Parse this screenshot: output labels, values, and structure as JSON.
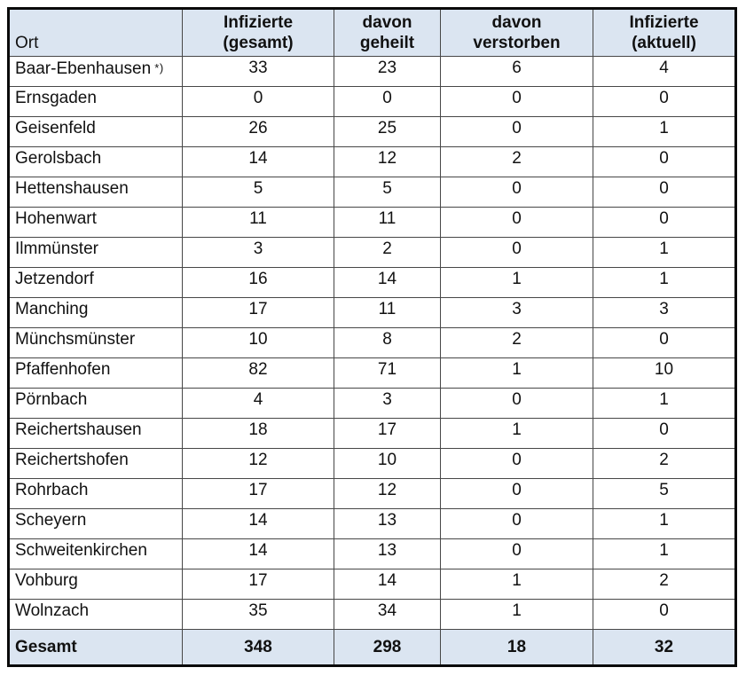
{
  "table": {
    "columns": [
      {
        "label": "Ort"
      },
      {
        "label": "Infizierte\n(gesamt)"
      },
      {
        "label": "davon\ngeheilt"
      },
      {
        "label": "davon\nverstorben"
      },
      {
        "label": "Infizierte\n(aktuell)"
      }
    ],
    "rows": [
      {
        "ort": "Baar-Ebenhausen",
        "note": "*)",
        "gesamt": "33",
        "geheilt": "23",
        "verstorben": "6",
        "aktuell": "4"
      },
      {
        "ort": "Ernsgaden",
        "note": "",
        "gesamt": "0",
        "geheilt": "0",
        "verstorben": "0",
        "aktuell": "0"
      },
      {
        "ort": "Geisenfeld",
        "note": "",
        "gesamt": "26",
        "geheilt": "25",
        "verstorben": "0",
        "aktuell": "1"
      },
      {
        "ort": "Gerolsbach",
        "note": "",
        "gesamt": "14",
        "geheilt": "12",
        "verstorben": "2",
        "aktuell": "0"
      },
      {
        "ort": "Hettenshausen",
        "note": "",
        "gesamt": "5",
        "geheilt": "5",
        "verstorben": "0",
        "aktuell": "0"
      },
      {
        "ort": "Hohenwart",
        "note": "",
        "gesamt": "11",
        "geheilt": "11",
        "verstorben": "0",
        "aktuell": "0"
      },
      {
        "ort": "Ilmmünster",
        "note": "",
        "gesamt": "3",
        "geheilt": "2",
        "verstorben": "0",
        "aktuell": "1"
      },
      {
        "ort": "Jetzendorf",
        "note": "",
        "gesamt": "16",
        "geheilt": "14",
        "verstorben": "1",
        "aktuell": "1"
      },
      {
        "ort": "Manching",
        "note": "",
        "gesamt": "17",
        "geheilt": "11",
        "verstorben": "3",
        "aktuell": "3"
      },
      {
        "ort": "Münchsmünster",
        "note": "",
        "gesamt": "10",
        "geheilt": "8",
        "verstorben": "2",
        "aktuell": "0"
      },
      {
        "ort": "Pfaffenhofen",
        "note": "",
        "gesamt": "82",
        "geheilt": "71",
        "verstorben": "1",
        "aktuell": "10"
      },
      {
        "ort": "Pörnbach",
        "note": "",
        "gesamt": "4",
        "geheilt": "3",
        "verstorben": "0",
        "aktuell": "1"
      },
      {
        "ort": "Reichertshausen",
        "note": "",
        "gesamt": "18",
        "geheilt": "17",
        "verstorben": "1",
        "aktuell": "0"
      },
      {
        "ort": "Reichertshofen",
        "note": "",
        "gesamt": "12",
        "geheilt": "10",
        "verstorben": "0",
        "aktuell": "2"
      },
      {
        "ort": "Rohrbach",
        "note": "",
        "gesamt": "17",
        "geheilt": "12",
        "verstorben": "0",
        "aktuell": "5"
      },
      {
        "ort": "Scheyern",
        "note": "",
        "gesamt": "14",
        "geheilt": "13",
        "verstorben": "0",
        "aktuell": "1"
      },
      {
        "ort": "Schweitenkirchen",
        "note": "",
        "gesamt": "14",
        "geheilt": "13",
        "verstorben": "0",
        "aktuell": "1"
      },
      {
        "ort": "Vohburg",
        "note": "",
        "gesamt": "17",
        "geheilt": "14",
        "verstorben": "1",
        "aktuell": "2"
      },
      {
        "ort": "Wolnzach",
        "note": "",
        "gesamt": "35",
        "geheilt": "34",
        "verstorben": "1",
        "aktuell": "0"
      }
    ],
    "total": {
      "label": "Gesamt",
      "gesamt": "348",
      "geheilt": "298",
      "verstorben": "18",
      "aktuell": "32"
    }
  },
  "colors": {
    "header_bg": "#dbe5f1",
    "total_bg": "#dbe5f1",
    "outer_border": "#0a0a0a",
    "inner_border": "#474747"
  }
}
